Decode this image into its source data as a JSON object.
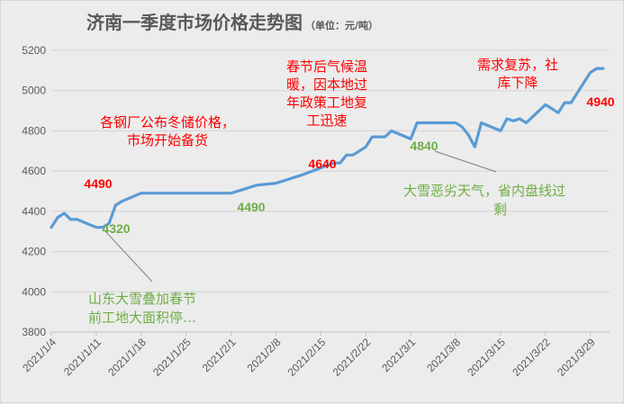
{
  "chart_data": {
    "type": "line",
    "title": "济南一季度市场价格走势图",
    "unit": "（单位：元/吨）",
    "ylim": [
      3800,
      5200
    ],
    "yticks": [
      "3800",
      "4000",
      "4200",
      "4400",
      "4600",
      "4800",
      "5000",
      "5200"
    ],
    "grid": true,
    "xticks": [
      "2021/1/4",
      "2021/1/11",
      "2021/1/18",
      "2021/1/25",
      "2021/2/1",
      "2021/2/8",
      "2021/2/15",
      "2021/2/22",
      "2021/3/1",
      "2021/3/8",
      "2021/3/15",
      "2021/3/22",
      "2021/3/29"
    ],
    "series": [
      {
        "color": "#5b9bd5",
        "x": [
          "2021/1/4",
          "2021/1/5",
          "2021/1/6",
          "2021/1/7",
          "2021/1/8",
          "2021/1/11",
          "2021/1/12",
          "2021/1/13",
          "2021/1/14",
          "2021/1/15",
          "2021/1/18",
          "2021/1/19",
          "2021/1/20",
          "2021/1/21",
          "2021/1/22",
          "2021/1/25",
          "2021/1/26",
          "2021/1/27",
          "2021/1/28",
          "2021/1/29",
          "2021/2/1",
          "2021/2/2",
          "2021/2/3",
          "2021/2/4",
          "2021/2/5",
          "2021/2/8",
          "2021/2/9",
          "2021/2/10",
          "2021/2/11",
          "2021/2/12",
          "2021/2/17",
          "2021/2/18",
          "2021/2/19",
          "2021/2/20",
          "2021/2/22",
          "2021/2/23",
          "2021/2/24",
          "2021/2/25",
          "2021/2/26",
          "2021/3/1",
          "2021/3/2",
          "2021/3/3",
          "2021/3/4",
          "2021/3/5",
          "2021/3/8",
          "2021/3/9",
          "2021/3/10",
          "2021/3/11",
          "2021/3/12",
          "2021/3/15",
          "2021/3/16",
          "2021/3/17",
          "2021/3/18",
          "2021/3/19",
          "2021/3/22",
          "2021/3/23",
          "2021/3/24",
          "2021/3/25",
          "2021/3/26",
          "2021/3/29",
          "2021/3/30",
          "2021/3/31"
        ],
        "values": [
          4320,
          4370,
          4390,
          4360,
          4360,
          4320,
          4320,
          4340,
          4430,
          4450,
          4490,
          4490,
          4490,
          4490,
          4490,
          4490,
          4490,
          4490,
          4490,
          4490,
          4490,
          4500,
          4510,
          4520,
          4530,
          4540,
          4550,
          4560,
          4570,
          4580,
          4640,
          4640,
          4680,
          4680,
          4720,
          4770,
          4770,
          4770,
          4800,
          4760,
          4840,
          4840,
          4840,
          4840,
          4840,
          4820,
          4780,
          4720,
          4840,
          4800,
          4860,
          4850,
          4860,
          4840,
          4930,
          4910,
          4890,
          4940,
          4940,
          5090,
          5110,
          5110
        ]
      }
    ],
    "point_labels": [
      {
        "text": "4320",
        "x": "2021/1/11",
        "color": "green"
      },
      {
        "text": "4490",
        "x": "2021/1/11",
        "color": "red"
      },
      {
        "text": "4490",
        "x": "2021/2/1",
        "color": "green"
      },
      {
        "text": "4640",
        "x": "2021/2/17",
        "color": "red"
      },
      {
        "text": "4840",
        "x": "2021/3/1",
        "color": "green"
      },
      {
        "text": "4940",
        "x": "2021/3/29",
        "color": "red"
      }
    ],
    "annotations": [
      {
        "lines": [
          "各钢厂公布冬储价格，",
          "市场开始备货"
        ],
        "color": "#ff0000"
      },
      {
        "lines": [
          "春节后气候温",
          "暖，因本地过",
          "年政策工地复",
          "工迅速"
        ],
        "color": "#ff0000"
      },
      {
        "lines": [
          "需求复苏，社",
          "库下降"
        ],
        "color": "#ff0000"
      },
      {
        "lines": [
          "大雪恶劣天气，省内盘线过",
          "剩"
        ],
        "color": "#70ad47"
      },
      {
        "lines": [
          "山东大雪叠加春节",
          "前工地大面积停…"
        ],
        "color": "#70ad47"
      }
    ]
  }
}
